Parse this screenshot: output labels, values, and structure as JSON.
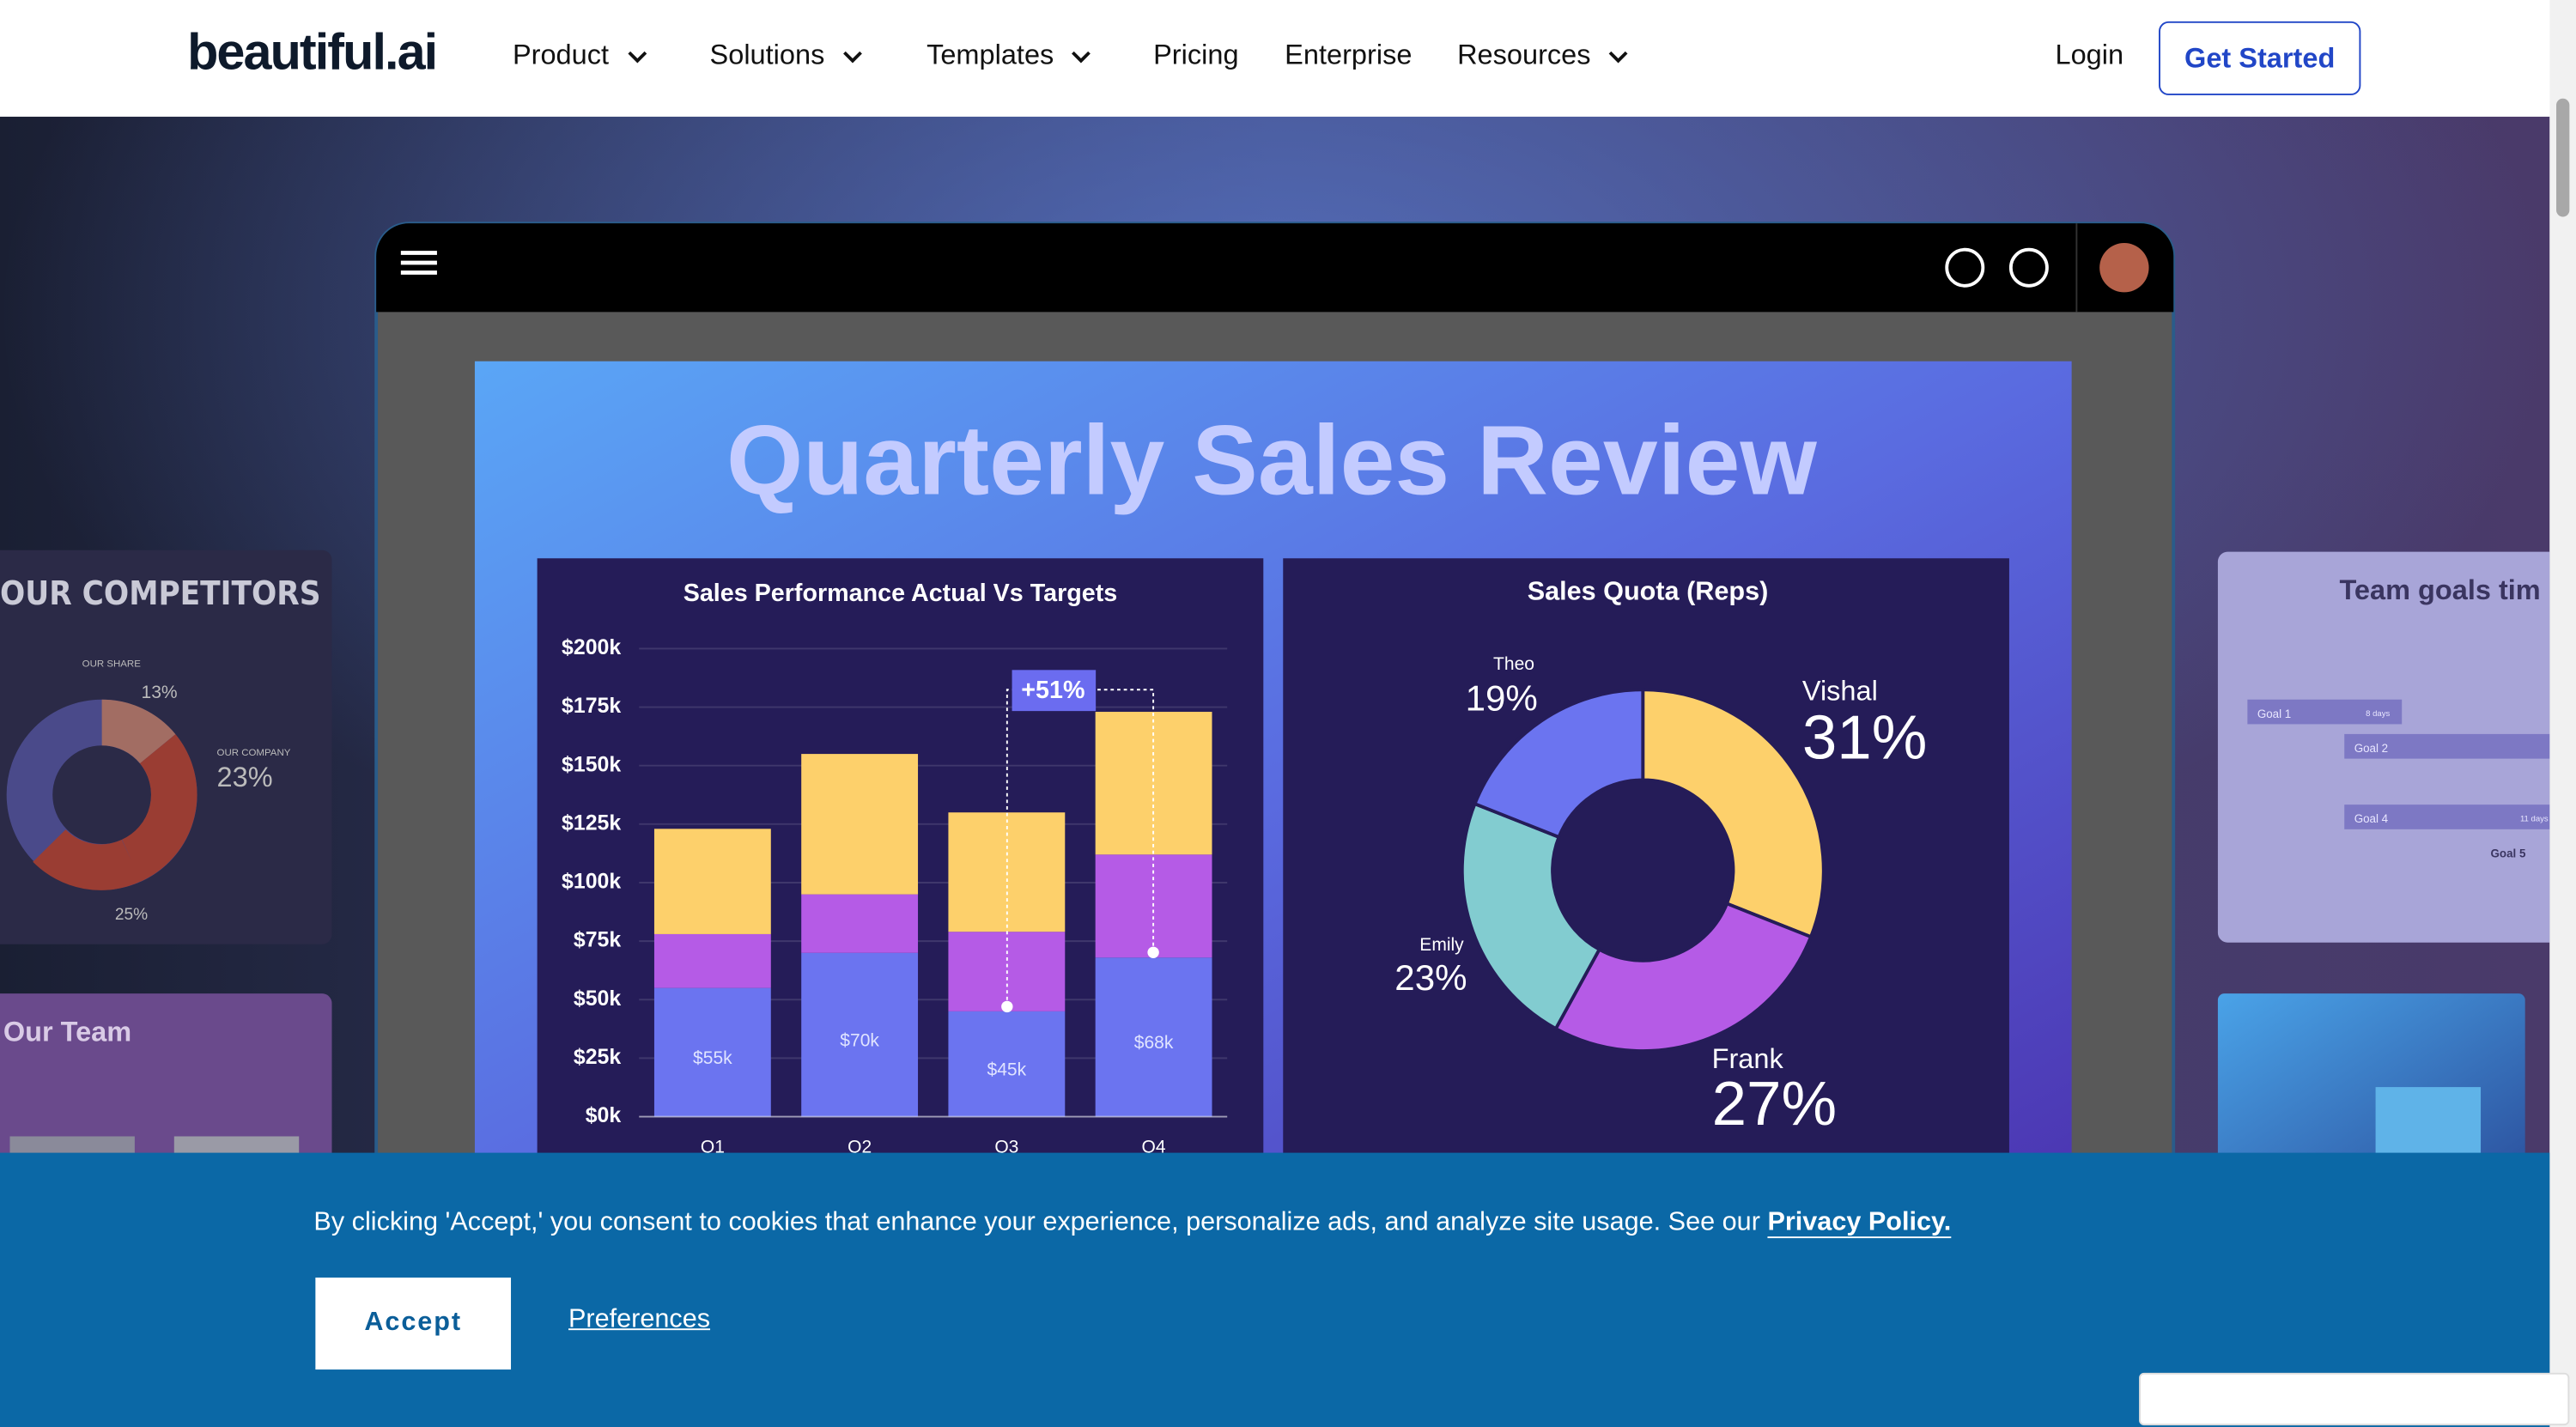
{
  "nav": {
    "logo": "beautiful.ai",
    "items": [
      "Product",
      "Solutions",
      "Templates",
      "Pricing",
      "Enterprise",
      "Resources"
    ],
    "login": "Login",
    "cta": "Get Started"
  },
  "slide": {
    "title": "Quarterly Sales Review"
  },
  "chart_data": [
    {
      "type": "bar",
      "stacked": true,
      "title": "Sales Performance Actual Vs Targets",
      "categories": [
        "Q1",
        "Q2",
        "Q3",
        "Q4"
      ],
      "series": [
        {
          "color": "#6b74f0",
          "values": [
            55000,
            70000,
            45000,
            68000
          ],
          "value_labels": [
            "$55k",
            "$70k",
            "$45k",
            "$68k"
          ]
        },
        {
          "color": "#b55be6",
          "values": [
            23000,
            25000,
            34000,
            44000
          ]
        },
        {
          "color": "#fdd06b",
          "values": [
            45000,
            60000,
            51000,
            61000
          ]
        }
      ],
      "ylim": [
        0,
        200000
      ],
      "yticks": [
        {
          "value": 0,
          "label": "$0k"
        },
        {
          "value": 25000,
          "label": "$25k"
        },
        {
          "value": 50000,
          "label": "$50k"
        },
        {
          "value": 75000,
          "label": "$75k"
        },
        {
          "value": 100000,
          "label": "$100k"
        },
        {
          "value": 125000,
          "label": "$125k"
        },
        {
          "value": 150000,
          "label": "$150k"
        },
        {
          "value": 175000,
          "label": "$175k"
        },
        {
          "value": 200000,
          "label": "$200k"
        }
      ],
      "grid": true,
      "annotation": "+51%"
    },
    {
      "type": "pie",
      "donut": true,
      "title": "Sales Quota (Reps)",
      "categories": [
        "Vishal",
        "Frank",
        "Emily",
        "Theo"
      ],
      "values": [
        31,
        27,
        23,
        19
      ],
      "value_labels": [
        "31%",
        "27%",
        "23%",
        "19%"
      ],
      "colors": [
        "#fdd06b",
        "#b55be6",
        "#82ccd0",
        "#6b74f0"
      ]
    }
  ],
  "side_left": {
    "title": "OUR COMPETITORS",
    "labels": [
      "OUR SHARE",
      "13%",
      "OUR COMPANY",
      "23%",
      "25%"
    ],
    "team": "Our Team"
  },
  "side_right": {
    "title": "Team goals tim",
    "goals": [
      "Goal 1",
      "Goal 2",
      "Goal 4",
      "Goal 5"
    ],
    "durations": [
      "8 days",
      "11 days"
    ]
  },
  "cookie": {
    "text": "By clicking 'Accept,' you consent to cookies that enhance your experience, personalize ads, and analyze site usage. See our",
    "link": "Privacy Policy.",
    "accept": "Accept",
    "preferences": "Preferences"
  }
}
